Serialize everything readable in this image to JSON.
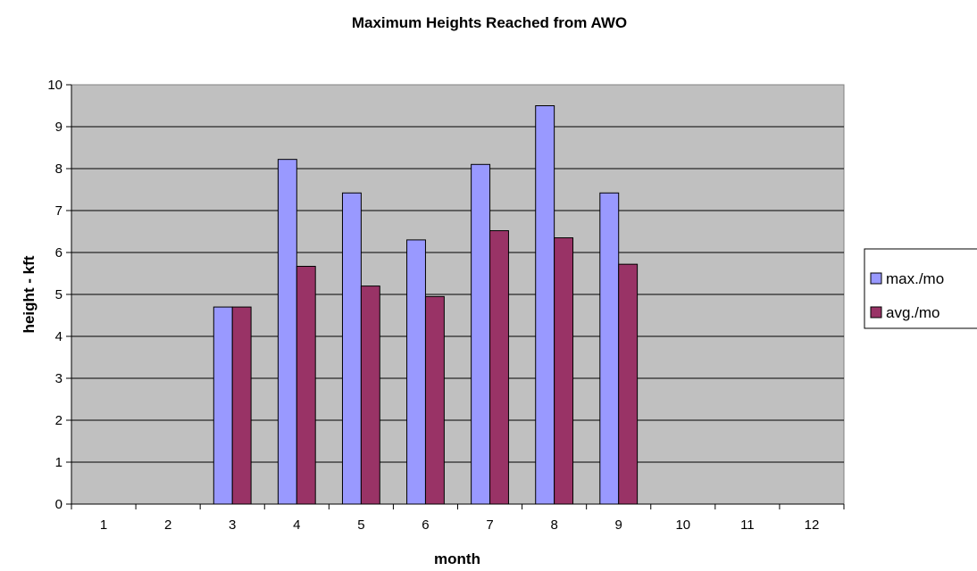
{
  "chart_data": {
    "type": "bar",
    "title": "Maximum Heights Reached from AWO",
    "xlabel": "month",
    "ylabel": "height - kft",
    "categories": [
      "1",
      "2",
      "3",
      "4",
      "5",
      "6",
      "7",
      "8",
      "9",
      "10",
      "11",
      "12"
    ],
    "ylim": [
      0,
      10
    ],
    "yticks": [
      "0",
      "1",
      "2",
      "3",
      "4",
      "5",
      "6",
      "7",
      "8",
      "9",
      "10"
    ],
    "grid": true,
    "legend_position": "right",
    "series": [
      {
        "name": "max./mo",
        "color": "#9999ff",
        "values": [
          null,
          null,
          4.7,
          8.22,
          7.42,
          6.3,
          8.1,
          9.5,
          7.42,
          null,
          null,
          null
        ]
      },
      {
        "name": "avg./mo",
        "color": "#993366",
        "values": [
          null,
          null,
          4.7,
          5.67,
          5.2,
          4.95,
          6.52,
          6.35,
          5.72,
          null,
          null,
          null
        ]
      }
    ],
    "plot_background": "#c0c0c0"
  }
}
